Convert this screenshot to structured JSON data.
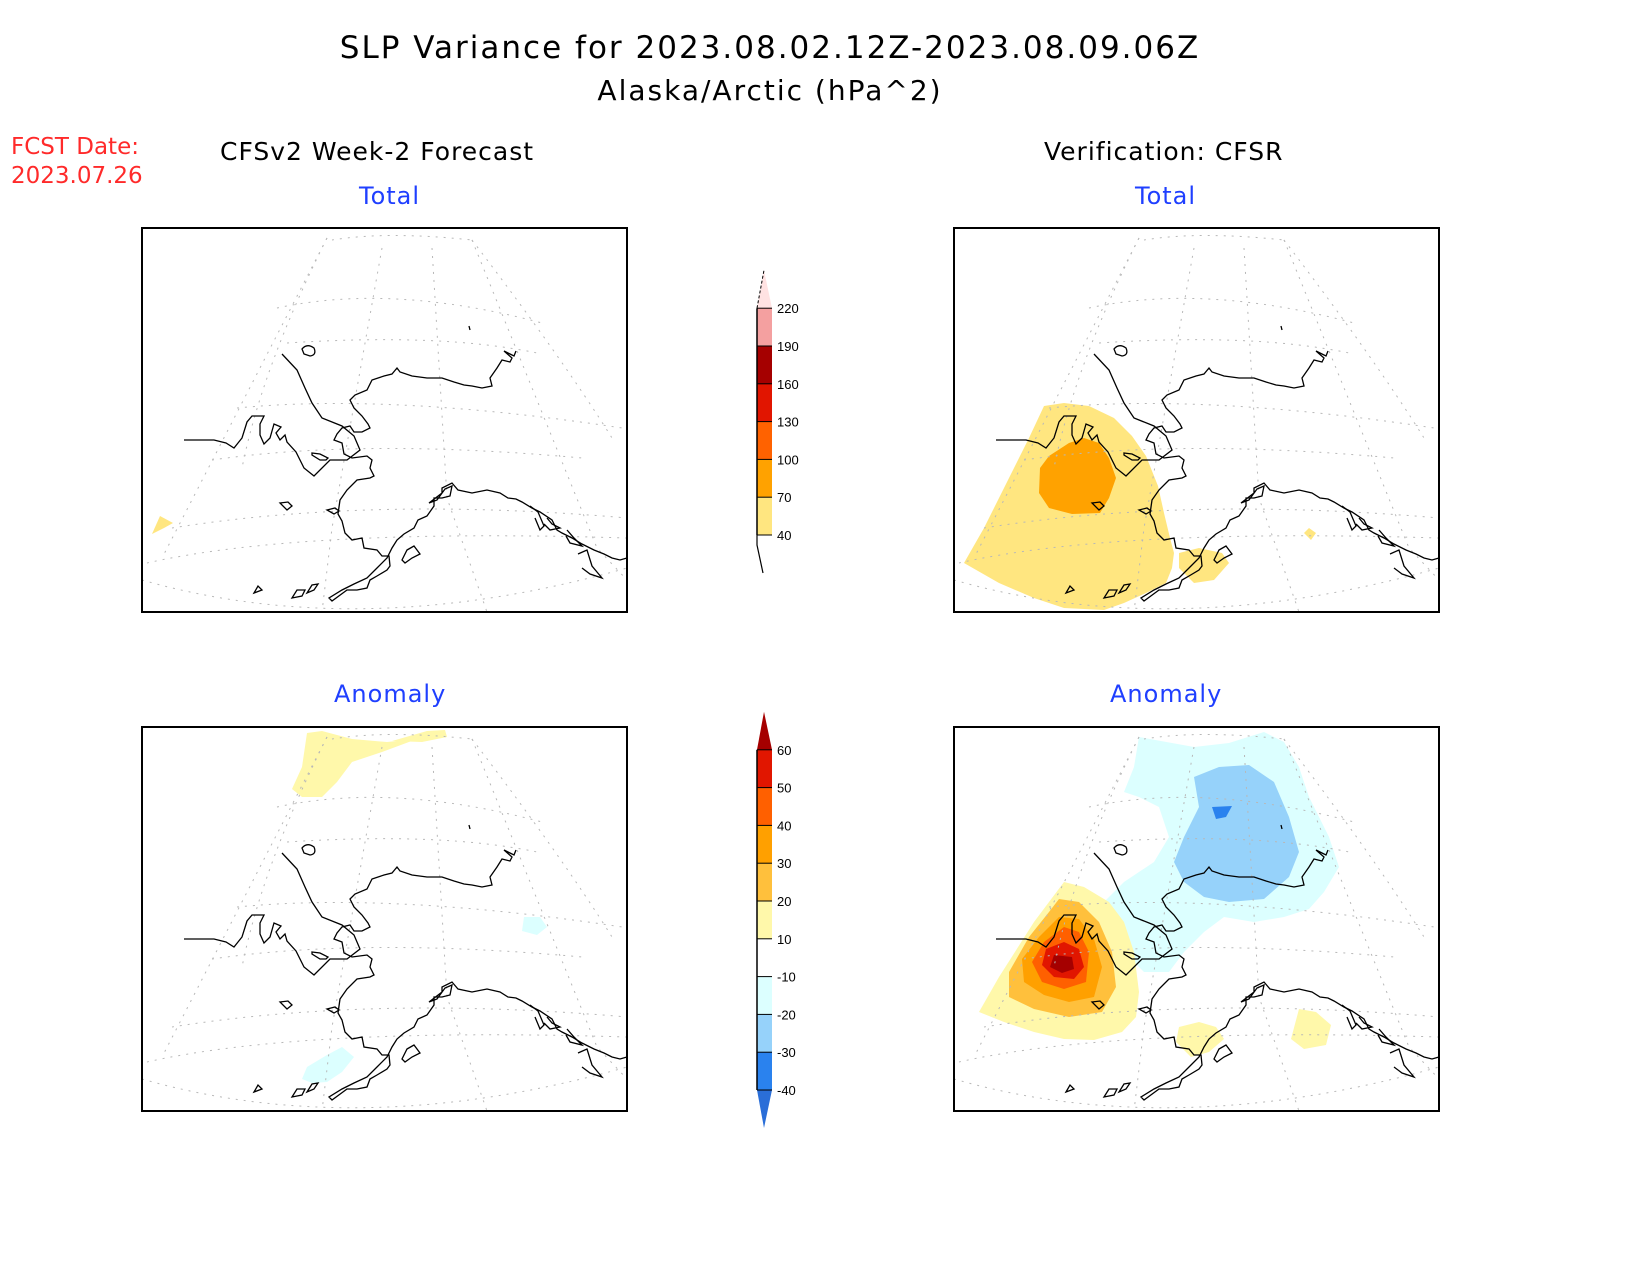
{
  "header": {
    "title": "SLP Variance for 2023.08.02.12Z-2023.08.09.06Z",
    "subtitle": "Alaska/Arctic (hPa^2)",
    "fcst_label": "FCST Date:",
    "fcst_date": "2023.07.26"
  },
  "columns": {
    "left": "CFSv2 Week-2 Forecast",
    "right": "Verification: CFSR"
  },
  "panels": {
    "forecast_total": "Total",
    "verification_total": "Total",
    "forecast_anomaly": "Anomaly",
    "verification_anomaly": "Anomaly"
  },
  "colors": {
    "title_blue": "#1f3fff",
    "fcst_red": "#ff2a2a"
  },
  "chart_data": [
    {
      "type": "heatmap",
      "title": "CFSv2 Week-2 Forecast - Total",
      "region": "Alaska/Arctic",
      "units": "hPa^2",
      "colorbar": "total",
      "features": [
        {
          "level_min": 40,
          "level_max": 70,
          "location": "far southwest edge (western Bering Sea)"
        }
      ]
    },
    {
      "type": "heatmap",
      "title": "Verification: CFSR - Total",
      "region": "Alaska/Arctic",
      "units": "hPa^2",
      "colorbar": "total",
      "features": [
        {
          "level_min": 40,
          "level_max": 70,
          "location": "Bering Sea / eastern Siberia broad region"
        },
        {
          "level_min": 70,
          "level_max": 100,
          "location": "Chukotka / western Bering Sea core"
        },
        {
          "level_min": 40,
          "level_max": 70,
          "location": "south of Alaska Peninsula"
        },
        {
          "level_min": 40,
          "level_max": 70,
          "location": "Gulf of Alaska small patch"
        }
      ]
    },
    {
      "type": "heatmap",
      "title": "CFSv2 Week-2 Forecast - Anomaly",
      "region": "Alaska/Arctic",
      "units": "hPa^2",
      "colorbar": "anomaly",
      "features": [
        {
          "level_min": 10,
          "level_max": 20,
          "location": "Arctic Ocean north edge"
        },
        {
          "level_min": -20,
          "level_max": -10,
          "location": "Yukon / NW Canada small patch"
        },
        {
          "level_min": -20,
          "level_max": -10,
          "location": "south of Alaska Peninsula"
        }
      ]
    },
    {
      "type": "heatmap",
      "title": "Verification: CFSR - Anomaly",
      "region": "Alaska/Arctic",
      "units": "hPa^2",
      "colorbar": "anomaly",
      "features": [
        {
          "level_min": 60,
          "level_max": null,
          "location": "Chukotka peninsula core"
        },
        {
          "level_min": -20,
          "level_max": -10,
          "location": "Beaufort Sea / northern Alaska broad"
        },
        {
          "level_min": -30,
          "level_max": -20,
          "location": "Beaufort Sea"
        },
        {
          "level_min": -40,
          "level_max": -30,
          "location": "Beaufort Sea small core"
        },
        {
          "level_min": 10,
          "level_max": 20,
          "location": "south of Alaska Peninsula / Gulf of Alaska patches"
        }
      ]
    }
  ],
  "colorbars": {
    "total": {
      "levels": [
        "40",
        "70",
        "100",
        "130",
        "160",
        "190",
        "220"
      ],
      "colors": [
        "#ffe680",
        "#ffa200",
        "#ff6200",
        "#e11500",
        "#a50000",
        "#f4a0a0",
        "#ffe2e2"
      ],
      "open_top_color": "#ffe2e2",
      "below_color": "#ffffff"
    },
    "anomaly": {
      "levels": [
        "-40",
        "-30",
        "-20",
        "-10",
        "10",
        "20",
        "30",
        "40",
        "50",
        "60"
      ],
      "colors": [
        "#2a82ee",
        "#96d2fa",
        "#dcffff",
        "#ffffff",
        "#fff8aa",
        "#ffc03c",
        "#ffa000",
        "#ff6000",
        "#e11600",
        "#a50000"
      ],
      "bottom_color": "#2a6ed8",
      "top_color": "#a50000"
    }
  }
}
